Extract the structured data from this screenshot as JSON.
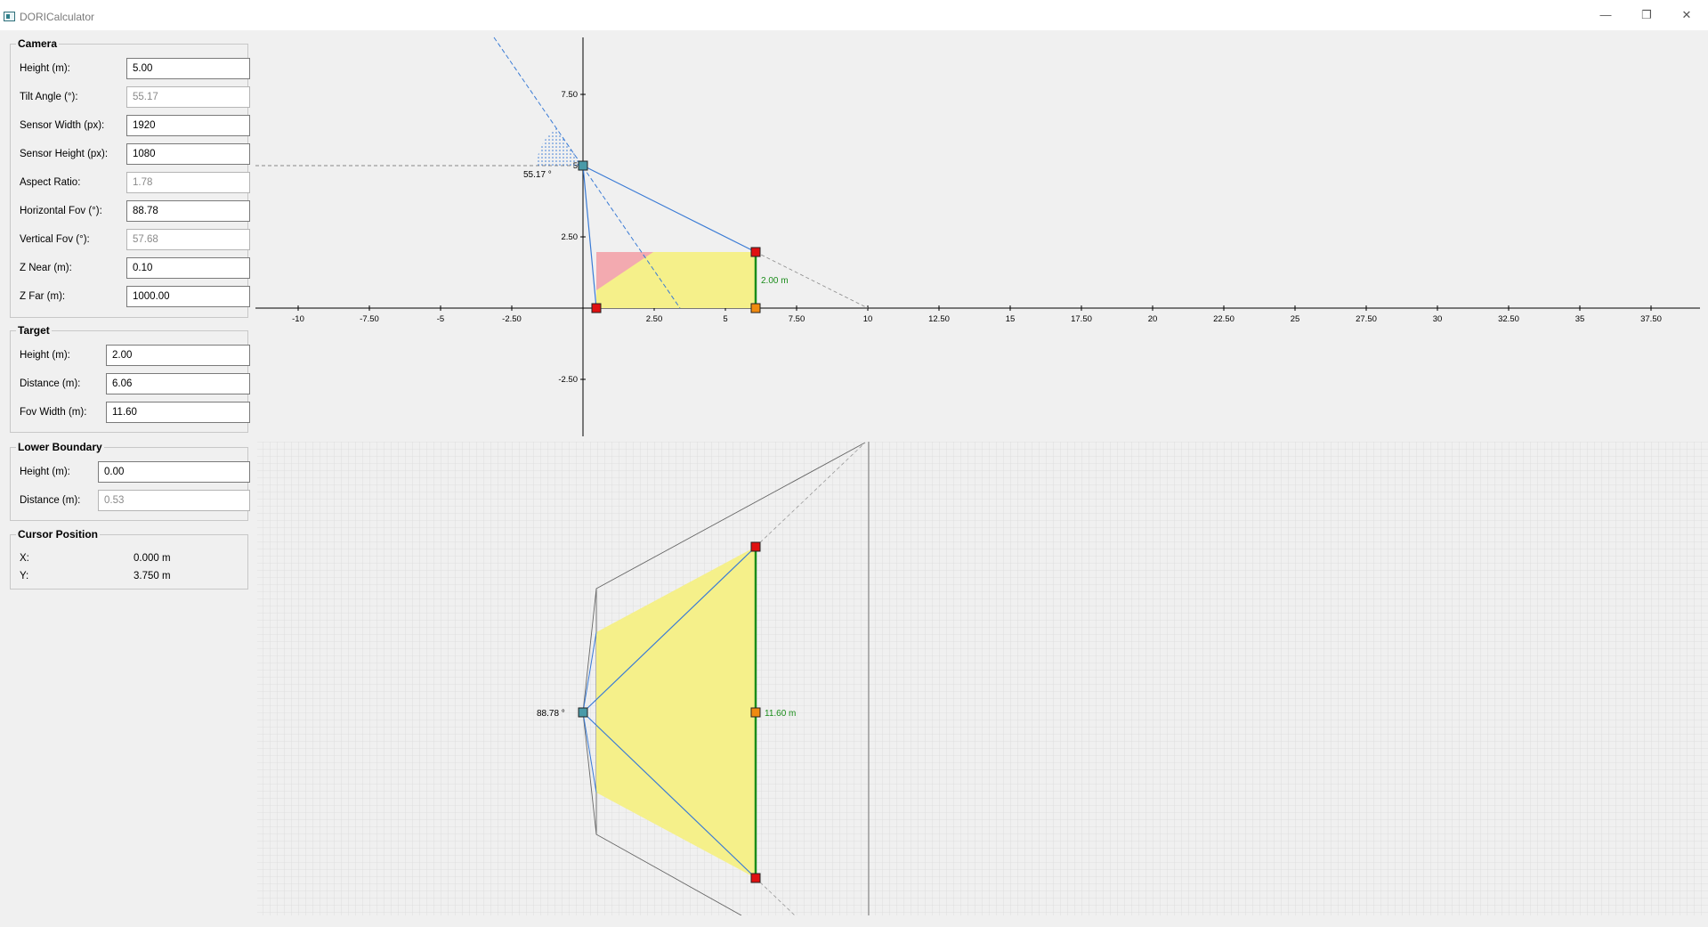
{
  "window": {
    "title": "DORICalculator",
    "minimize": "—",
    "restore": "❐",
    "close": "✕"
  },
  "camera": {
    "title": "Camera",
    "fields": [
      {
        "label": "Height (m):",
        "value": "5.00",
        "readonly": false
      },
      {
        "label": "Tilt Angle (°):",
        "value": "55.17",
        "readonly": true
      },
      {
        "label": "Sensor Width (px):",
        "value": "1920",
        "readonly": false
      },
      {
        "label": "Sensor Height (px):",
        "value": "1080",
        "readonly": false
      },
      {
        "label": "Aspect Ratio:",
        "value": "1.78",
        "readonly": true
      },
      {
        "label": "Horizontal Fov (°):",
        "value": "88.78",
        "readonly": false
      },
      {
        "label": "Vertical Fov (°):",
        "value": "57.68",
        "readonly": true
      },
      {
        "label": "Z Near (m):",
        "value": "0.10",
        "readonly": false
      },
      {
        "label": "Z Far (m):",
        "value": "1000.00",
        "readonly": false
      }
    ]
  },
  "target": {
    "title": "Target",
    "fields": [
      {
        "label": "Height (m):",
        "value": "2.00",
        "readonly": false
      },
      {
        "label": "Distance (m):",
        "value": "6.06",
        "readonly": false
      },
      {
        "label": "Fov Width (m):",
        "value": "11.60",
        "readonly": false
      }
    ]
  },
  "lower_boundary": {
    "title": "Lower Boundary",
    "fields": [
      {
        "label": "Height (m):",
        "value": "0.00",
        "readonly": false
      },
      {
        "label": "Distance (m):",
        "value": "0.53",
        "readonly": true
      }
    ]
  },
  "cursor": {
    "title": "Cursor Position",
    "x_label": "X:",
    "x_value": "0.000 m",
    "y_label": "Y:",
    "y_value": "3.750 m"
  },
  "side_view": {
    "x_ticks": [
      "-10",
      "-7.50",
      "-5",
      "-2.50",
      "2.50",
      "5",
      "7.50",
      "10",
      "12.50",
      "15",
      "17.50",
      "20",
      "22.50",
      "25",
      "27.50",
      "30",
      "32.50",
      "35",
      "37.50"
    ],
    "y_ticks": [
      "7.50",
      "5",
      "2.50",
      "-2.50"
    ],
    "tilt_label": "55.17 °",
    "target_height_label": "2.00 m",
    "camera_height": 5.0,
    "target_height": 2.0,
    "target_distance": 6.06,
    "lower_distance": 0.53,
    "colors": {
      "frustum": "#3a7bd5",
      "target": "#1a8c1a",
      "zone": "#f5f08a",
      "zone_red": "#f3aab0",
      "handle_red": "#e01010",
      "handle_orange": "#f08a10",
      "handle_camera": "#4a9aa8"
    }
  },
  "top_view": {
    "hfov_label": "88.78 °",
    "fov_width_label": "11.60 m"
  }
}
